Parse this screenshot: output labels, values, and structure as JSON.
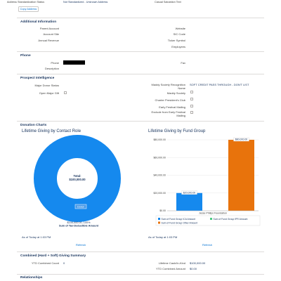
{
  "top": {
    "address_std_label": "Address Standardization Status",
    "address_std_value": "Not Standardized - Unknown Address",
    "casual_salutation_label": "Casual Salutation Text",
    "copy_address_button": "Copy Address"
  },
  "additional_info": {
    "title": "Additional Information",
    "parent_account": "Parent Account",
    "account_site": "Account Site",
    "annual_revenue": "Annual Revenue",
    "website": "Website",
    "sic_code": "SIC Code",
    "ticker_symbol": "Ticker Symbol",
    "employees": "Employees"
  },
  "phone_section": {
    "title": "Phone",
    "phone_label": "Phone",
    "description_label": "Description",
    "fax_label": "Fax"
  },
  "prospect": {
    "title": "Prospect Intelligence",
    "major_donor_status": "Major Donor Status",
    "open_major_gift": "Open Major Gift",
    "recognition_name_label": "Maddy Society Recognition Name",
    "recognition_name_value": "SOFT CREDIT PASS THROUGH - DON'T LIST",
    "maddy_society": "Maddy Society",
    "charter_presidents_club": "Charter President's Club",
    "early_festival_mailing": "Early Festival Mailing",
    "exclude_early_festival": "Exclude from Early Festival Mailing"
  },
  "donation_charts": {
    "title": "Donation Charts",
    "left_chart_title": "Lifetime Giving by Contact Role",
    "right_chart_title": "Lifetime Giving by Fund Group",
    "left_as_of": "As of Today at 1:03 PM",
    "right_as_of": "As of Today at 1:03 PM",
    "refresh_label": "Refresh"
  },
  "giving_summary": {
    "title": "Combined (Hard + Soft) Giving Summary",
    "ytd_count_label": "YTD Combined Count",
    "ytd_count_value": "0",
    "lifetime_cash_label": "Lifetime Cash/In-Kind",
    "lifetime_cash_value": "$100,000.00",
    "ytd_amount_label": "YTD Combined Amount",
    "ytd_amount_value": "$0.00"
  },
  "relationships": {
    "title": "Relationships"
  },
  "colors": {
    "blue": "#1589ee",
    "orange": "#e8730c",
    "green": "#4bca81",
    "link": "#0070d2"
  },
  "chart_data": [
    {
      "type": "pie",
      "title": "Lifetime Giving by Contact Role",
      "center_label": "Total:",
      "center_value": "$100,000.00",
      "slices": [
        {
          "name": "Donor",
          "value": 100000,
          "percent": 100
        }
      ],
      "slice_caption": "$100,000.00, 100%",
      "measure_label": "Sum of Tax-Deductible Amount"
    },
    {
      "type": "bar",
      "title": "Lifetime Giving by Fund Group",
      "categories": [
        "Jesse Philips Foundation"
      ],
      "series": [
        {
          "name": "Sum of Fund Group ICA Amount",
          "values": [
            20000
          ],
          "label": "$20,000.00"
        },
        {
          "name": "Sum of Fund Group IPR Amount",
          "values": [
            0
          ],
          "label": ""
        },
        {
          "name": "Sum of Fund Group Other Amount",
          "values": [
            80000
          ],
          "label": "$80,000.00"
        }
      ],
      "yticks": [
        "$0.00",
        "$20,000.00",
        "$40,000.00",
        "$60,000.00",
        "$80,000.00"
      ],
      "ylim": [
        0,
        80000
      ]
    }
  ]
}
